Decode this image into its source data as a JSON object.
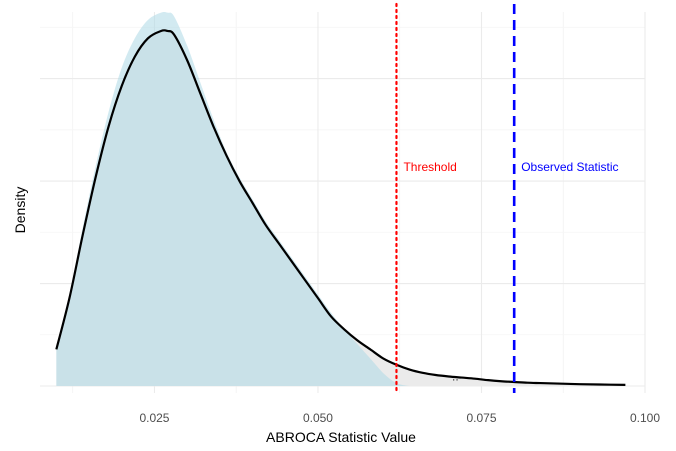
{
  "chart_data": {
    "type": "area",
    "xlabel": "ABROCA Statistic Value",
    "ylabel": "Density",
    "xlim": [
      0.0075,
      0.1
    ],
    "ylim": [
      0,
      1.0
    ],
    "x_ticks": [
      0.025,
      0.05,
      0.075,
      0.1
    ],
    "x_tick_labels": [
      "0.025",
      "0.050",
      "0.075",
      "0.100"
    ],
    "grid": true,
    "series": [
      {
        "role": "density curve",
        "x": [
          0.01,
          0.012,
          0.014,
          0.016,
          0.018,
          0.02,
          0.022,
          0.024,
          0.026,
          0.027,
          0.028,
          0.03,
          0.032,
          0.034,
          0.036,
          0.038,
          0.04,
          0.042,
          0.044,
          0.046,
          0.048,
          0.05,
          0.052,
          0.054,
          0.056,
          0.058,
          0.06,
          0.062,
          0.064,
          0.066,
          0.068,
          0.07,
          0.072,
          0.074,
          0.076,
          0.078,
          0.08,
          0.082,
          0.084,
          0.086,
          0.088,
          0.09,
          0.093,
          0.097
        ],
        "y": [
          0.1,
          0.24,
          0.41,
          0.57,
          0.71,
          0.82,
          0.9,
          0.95,
          0.97,
          0.97,
          0.96,
          0.89,
          0.8,
          0.71,
          0.63,
          0.56,
          0.5,
          0.44,
          0.39,
          0.34,
          0.29,
          0.24,
          0.19,
          0.155,
          0.125,
          0.1,
          0.075,
          0.058,
          0.045,
          0.036,
          0.03,
          0.026,
          0.023,
          0.02,
          0.016,
          0.013,
          0.011,
          0.009,
          0.008,
          0.007,
          0.006,
          0.005,
          0.004,
          0.003
        ]
      },
      {
        "role": "null distribution fill",
        "color": "#add8e6",
        "x": [
          0.01,
          0.012,
          0.014,
          0.016,
          0.018,
          0.02,
          0.022,
          0.024,
          0.026,
          0.027,
          0.028,
          0.03,
          0.032,
          0.034,
          0.036,
          0.038,
          0.04,
          0.042,
          0.044,
          0.046,
          0.048,
          0.05,
          0.052,
          0.054,
          0.056,
          0.058,
          0.06,
          0.062,
          0.064
        ],
        "y": [
          0.1,
          0.25,
          0.43,
          0.6,
          0.75,
          0.87,
          0.95,
          1.0,
          1.02,
          1.02,
          1.01,
          0.93,
          0.83,
          0.73,
          0.64,
          0.57,
          0.51,
          0.45,
          0.4,
          0.35,
          0.3,
          0.25,
          0.2,
          0.155,
          0.115,
          0.075,
          0.035,
          0.008,
          0.0
        ]
      }
    ],
    "vlines": [
      {
        "label": "Threshold",
        "x": 0.062,
        "color": "#ff0000",
        "style": "dotted"
      },
      {
        "label": "Observed Statistic",
        "x": 0.08,
        "color": "#0000ff",
        "style": "dashed"
      }
    ],
    "annotations": [
      {
        "text": "..",
        "x": 0.071,
        "y": 0.01
      }
    ]
  }
}
